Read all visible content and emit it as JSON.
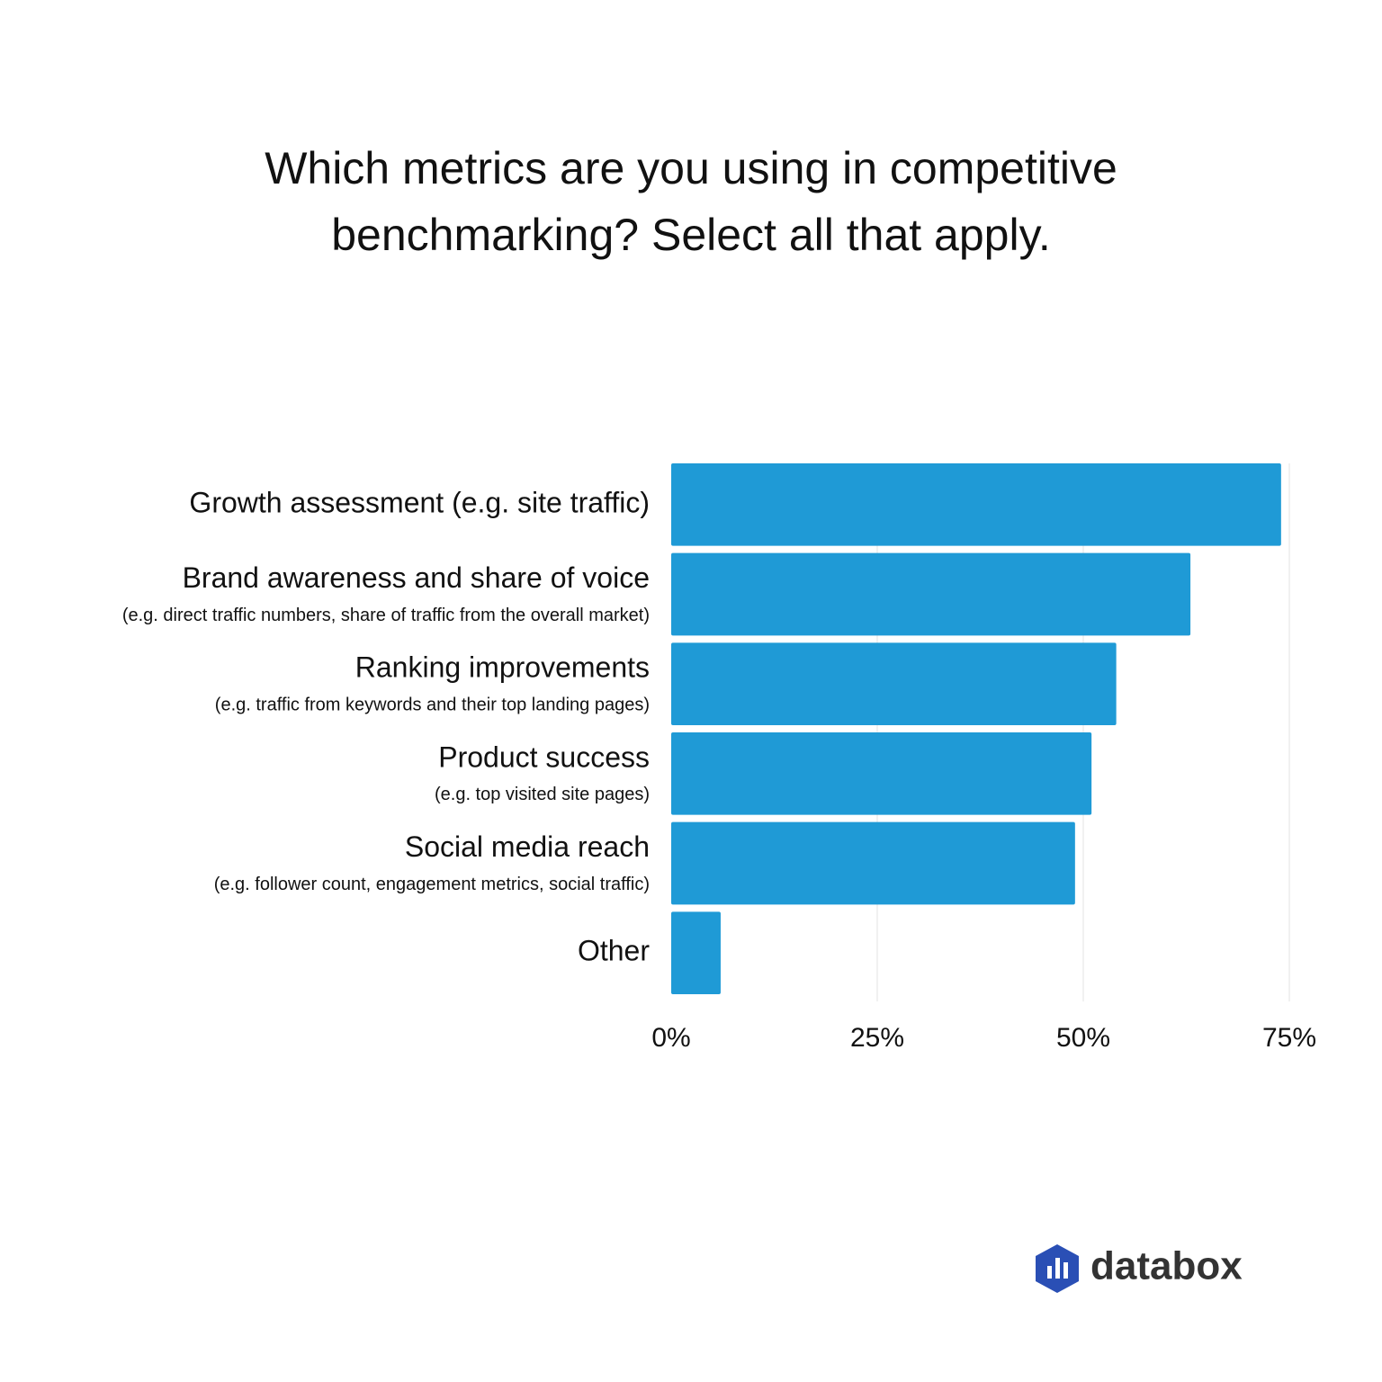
{
  "chart_data": {
    "type": "bar",
    "orientation": "horizontal",
    "title": "Which metrics are you using in competitive benchmarking? Select all that apply.",
    "categories": [
      "Growth assessment (e.g. site traffic)",
      "Brand awareness and share of voice",
      "Ranking improvements",
      "Product success",
      "Social media reach",
      "Other"
    ],
    "sublabels": [
      null,
      "(e.g. direct traffic numbers, share of traffic from the overall market)",
      "(e.g. traffic from keywords and their top landing pages)",
      "(e.g. top visited site pages)",
      "(e.g. follower count, engagement metrics, social traffic)",
      null
    ],
    "values": [
      74,
      63,
      54,
      51,
      49,
      6
    ],
    "color": "#1f9ad6",
    "xlim": [
      0,
      75
    ],
    "xticks": [
      {
        "value": 0,
        "label": "0%"
      },
      {
        "value": 25,
        "label": "25%"
      },
      {
        "value": 50,
        "label": "50%"
      },
      {
        "value": 75,
        "label": "75%"
      }
    ],
    "grid": true,
    "brand": "databox"
  }
}
